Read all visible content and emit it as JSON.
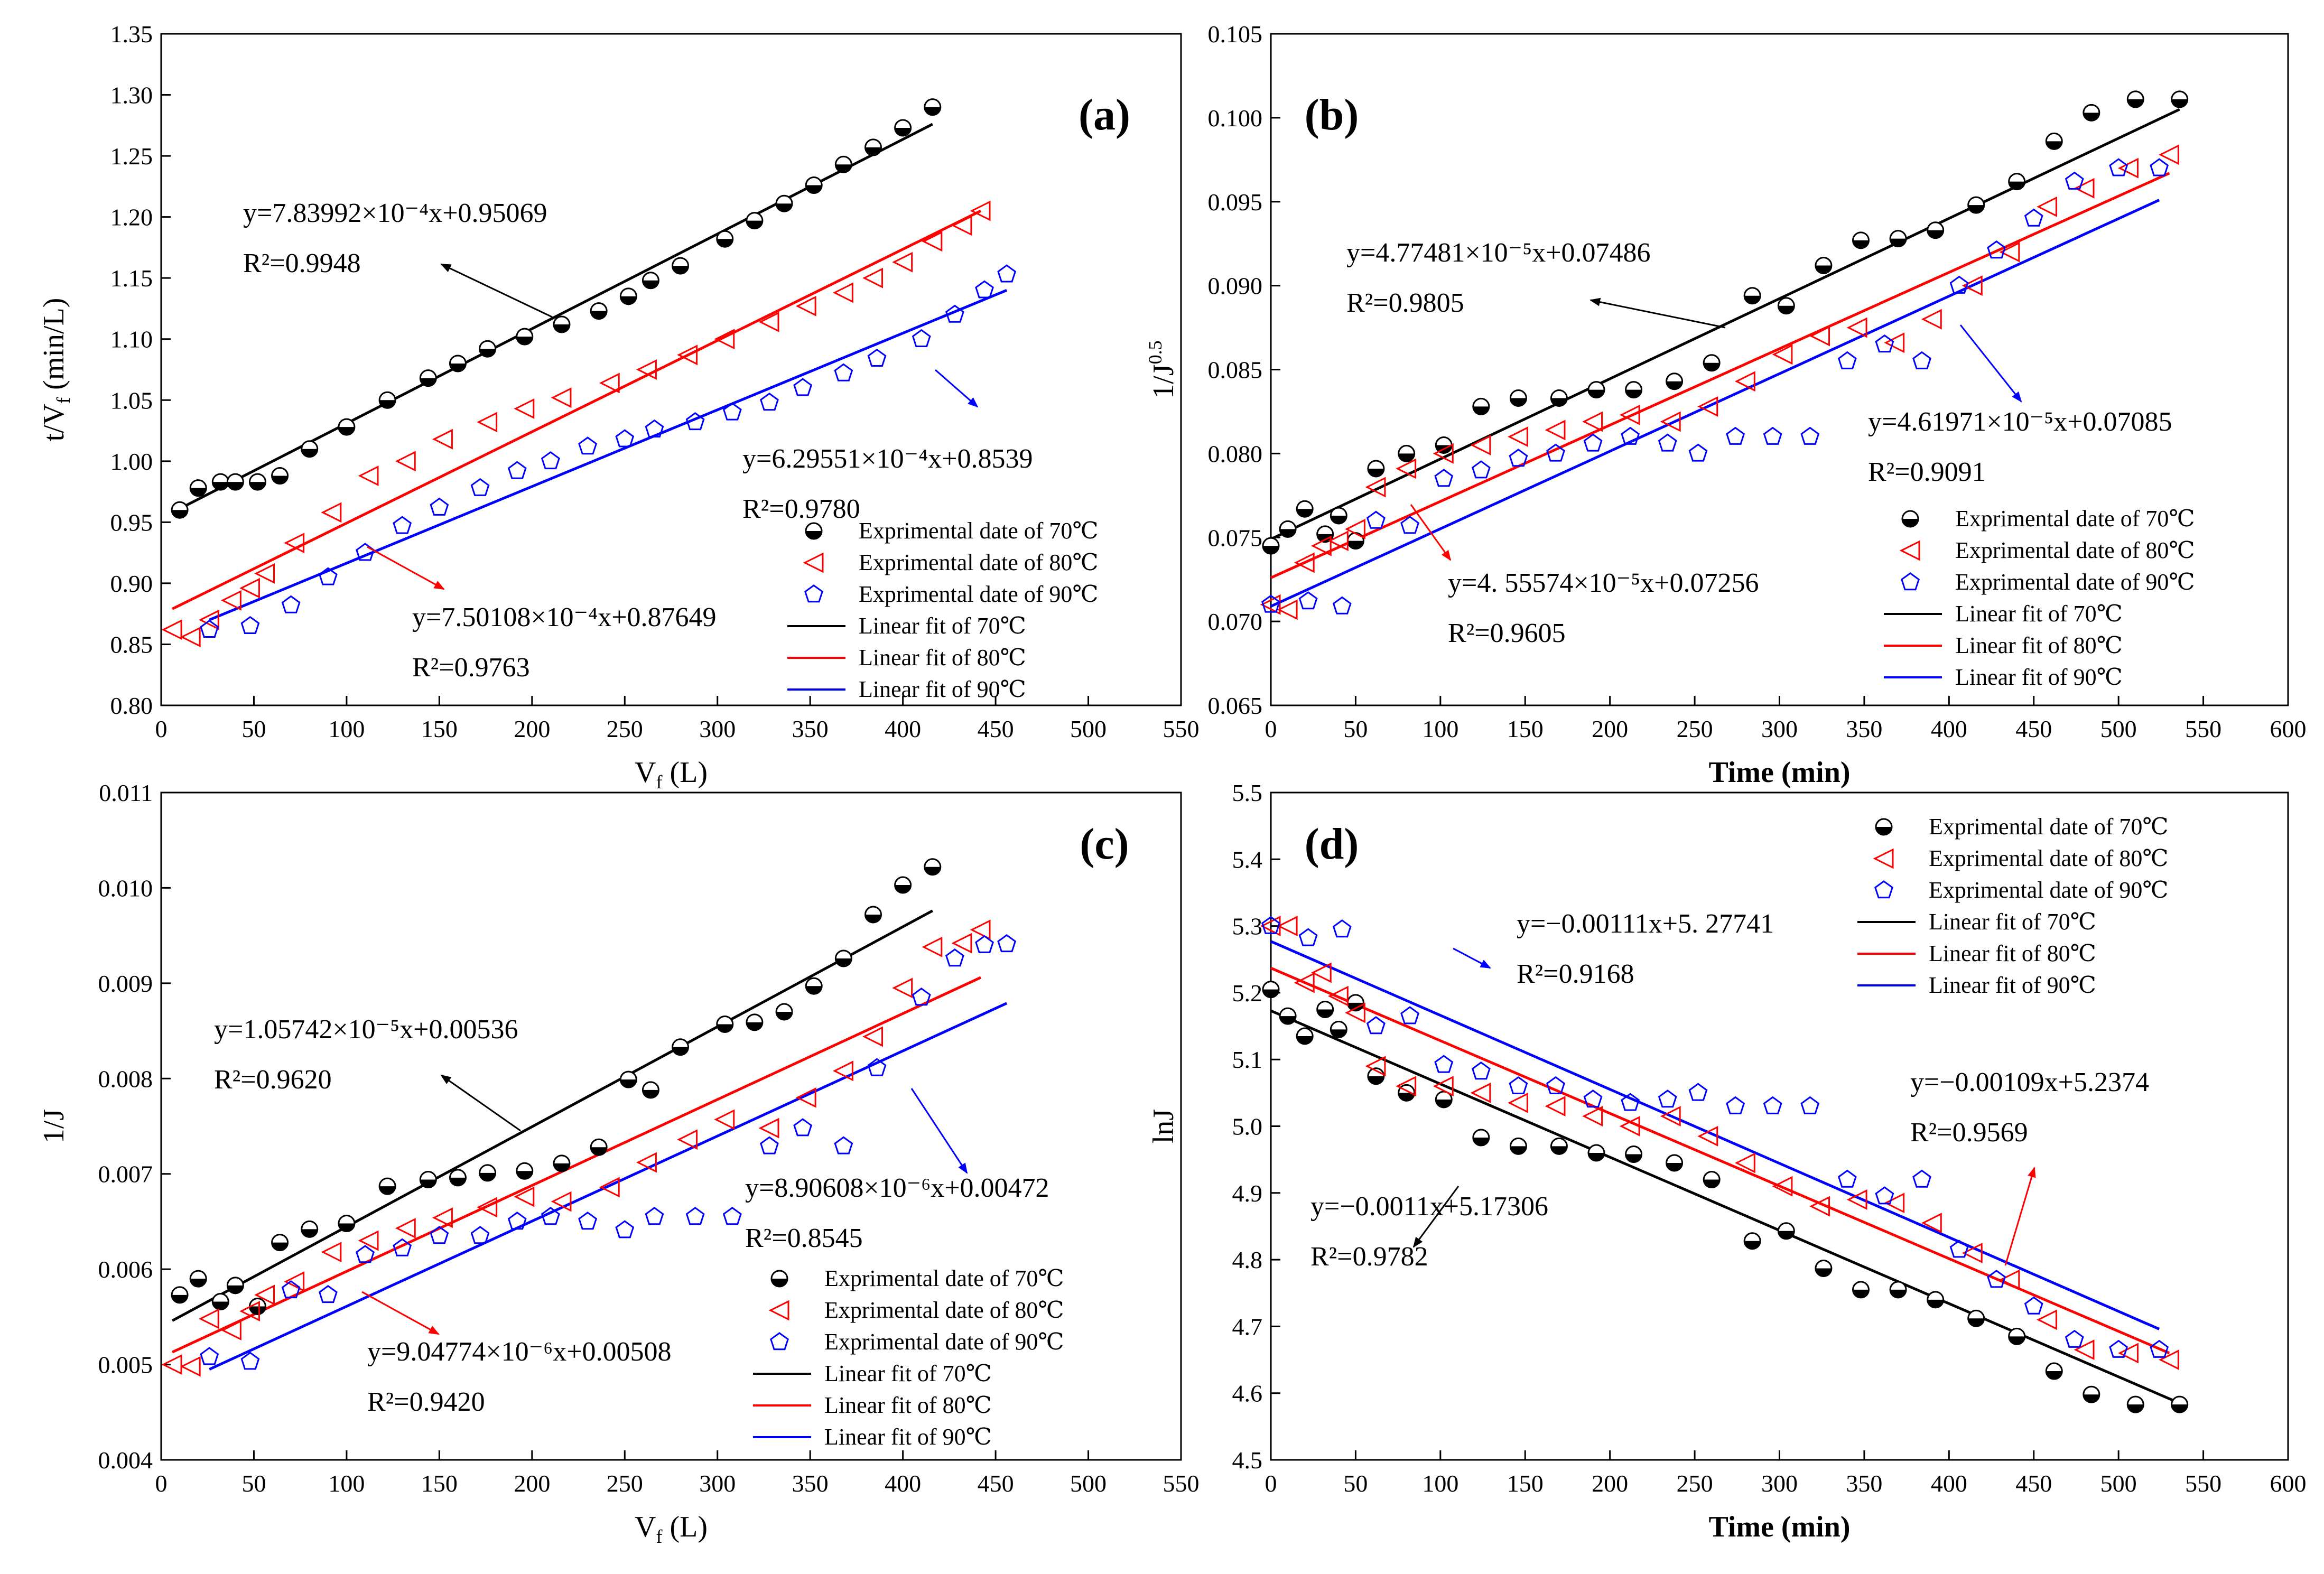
{
  "chart_data": [
    {
      "panel": "(a)",
      "type": "scatter",
      "xlabel": "Vf (L)",
      "ylabel": "t/Vf (min/L)",
      "xlim": [
        0,
        550
      ],
      "ylim": [
        0.8,
        1.35
      ],
      "xticks": [
        "0",
        "50",
        "100",
        "150",
        "200",
        "250",
        "300",
        "350",
        "400",
        "450",
        "500",
        "550"
      ],
      "yticks": [
        "0.80",
        "0.85",
        "0.90",
        "0.95",
        "1.00",
        "1.05",
        "1.10",
        "1.15",
        "1.20",
        "1.25",
        "1.30",
        "1.35"
      ],
      "series": [
        {
          "name": "Exprimental date of 70℃",
          "marker": "half",
          "color": "#000000",
          "x": [
            10,
            20,
            32,
            40,
            52,
            64,
            80,
            100,
            122,
            144,
            160,
            176,
            196,
            216,
            236,
            252,
            264,
            280,
            304,
            320,
            336,
            352,
            368,
            384,
            400,
            416
          ],
          "y": [
            0.96,
            0.978,
            0.983,
            0.983,
            0.983,
            0.988,
            1.01,
            1.028,
            1.05,
            1.068,
            1.08,
            1.092,
            1.102,
            1.112,
            1.123,
            1.135,
            1.148,
            1.16,
            1.182,
            1.197,
            1.211,
            1.226,
            1.243,
            1.257,
            1.273,
            1.29
          ]
        },
        {
          "name": "Exprimental date of 80℃",
          "marker": "triangle",
          "color": "#ff0000",
          "x": [
            6,
            16,
            26,
            38,
            48,
            56,
            72,
            92,
            112,
            132,
            152,
            176,
            196,
            216,
            242,
            262,
            284,
            304,
            328,
            348,
            368,
            384,
            400,
            416,
            432,
            442
          ],
          "y": [
            0.862,
            0.856,
            0.87,
            0.886,
            0.896,
            0.908,
            0.933,
            0.958,
            0.988,
            1.0,
            1.018,
            1.032,
            1.043,
            1.052,
            1.064,
            1.075,
            1.087,
            1.1,
            1.114,
            1.127,
            1.138,
            1.15,
            1.163,
            1.18,
            1.193,
            1.205
          ]
        },
        {
          "name": "Exprimental date of 90℃",
          "marker": "pentagon",
          "color": "#0000ff",
          "x": [
            26,
            48,
            70,
            90,
            110,
            130,
            150,
            172,
            192,
            210,
            230,
            250,
            266,
            288,
            308,
            328,
            346,
            368,
            386,
            410,
            428,
            444,
            456
          ],
          "y": [
            0.862,
            0.865,
            0.882,
            0.905,
            0.925,
            0.947,
            0.962,
            0.978,
            0.992,
            1.0,
            1.012,
            1.018,
            1.026,
            1.032,
            1.04,
            1.048,
            1.06,
            1.072,
            1.084,
            1.1,
            1.12,
            1.14,
            1.153
          ]
        }
      ],
      "fits": [
        {
          "name": "Linear fit of 70℃",
          "color": "#000000",
          "x": [
            6,
            416
          ],
          "y": [
            0.958,
            1.276
          ]
        },
        {
          "name": "Linear fit of 80℃",
          "color": "#ff0000",
          "x": [
            6,
            442
          ],
          "y": [
            0.879,
            1.205
          ]
        },
        {
          "name": "Linear fit of 90℃",
          "color": "#0000ff",
          "x": [
            26,
            456
          ],
          "y": [
            0.87,
            1.14
          ]
        }
      ],
      "equations": [
        {
          "text": "y=7.83992×10⁻⁴x+0.95069",
          "r2": "R²=0.9948"
        },
        {
          "text": "y=6.29551×10⁻⁴x+0.8539",
          "r2": "R²=0.9780"
        },
        {
          "text": "y=7.50108×10⁻⁴x+0.87649",
          "r2": "R²=0.9763"
        }
      ]
    },
    {
      "panel": "(b)",
      "type": "scatter",
      "xlabel": "Time (min)",
      "ylabel": "1/J^0.5",
      "xlim": [
        0,
        600
      ],
      "ylim": [
        0.065,
        0.105
      ],
      "xticks": [
        "0",
        "50",
        "100",
        "150",
        "200",
        "250",
        "300",
        "350",
        "400",
        "450",
        "500",
        "550",
        "600"
      ],
      "yticks": [
        "0.065",
        "0.070",
        "0.075",
        "0.080",
        "0.085",
        "0.090",
        "0.095",
        "0.100",
        "0.105"
      ],
      "series": [
        {
          "name": "Exprimental date of 70℃",
          "marker": "half",
          "color": "#000000",
          "x": [
            0,
            10,
            20,
            32,
            40,
            50,
            62,
            80,
            102,
            124,
            146,
            170,
            192,
            214,
            238,
            260,
            284,
            304,
            326,
            348,
            370,
            392,
            416,
            440,
            462,
            484,
            510,
            536
          ],
          "y": [
            0.0745,
            0.0755,
            0.0767,
            0.0752,
            0.0763,
            0.0748,
            0.0791,
            0.08,
            0.0805,
            0.0828,
            0.0833,
            0.0833,
            0.0838,
            0.0838,
            0.0843,
            0.0854,
            0.0894,
            0.0888,
            0.0912,
            0.0927,
            0.0928,
            0.0933,
            0.0948,
            0.0962,
            0.0986,
            0.1003,
            0.1011,
            0.1011
          ]
        },
        {
          "name": "Exprimental date of 80℃",
          "marker": "triangle",
          "color": "#ff0000",
          "x": [
            0,
            10,
            20,
            30,
            40,
            50,
            62,
            80,
            102,
            124,
            146,
            168,
            190,
            212,
            236,
            258,
            280,
            302,
            324,
            346,
            368,
            390,
            414,
            436,
            458,
            480,
            506,
            530
          ],
          "y": [
            0.071,
            0.0707,
            0.0735,
            0.0745,
            0.0748,
            0.0755,
            0.078,
            0.0791,
            0.08,
            0.0805,
            0.081,
            0.0814,
            0.0819,
            0.0823,
            0.0819,
            0.0828,
            0.0843,
            0.0859,
            0.087,
            0.0875,
            0.0866,
            0.088,
            0.09,
            0.092,
            0.0947,
            0.0958,
            0.097,
            0.0978
          ]
        },
        {
          "name": "Exprimental date of 90℃",
          "marker": "pentagon",
          "color": "#0000ff",
          "x": [
            0,
            22,
            42,
            62,
            82,
            102,
            124,
            146,
            168,
            190,
            212,
            234,
            252,
            274,
            296,
            318,
            340,
            362,
            384,
            406,
            428,
            450,
            474,
            500,
            524
          ],
          "y": [
            0.071,
            0.0712,
            0.0709,
            0.076,
            0.0757,
            0.0785,
            0.079,
            0.0797,
            0.08,
            0.0806,
            0.081,
            0.0806,
            0.08,
            0.081,
            0.081,
            0.081,
            0.0855,
            0.0865,
            0.0855,
            0.09,
            0.0921,
            0.094,
            0.0962,
            0.097,
            0.097
          ]
        }
      ],
      "fits": [
        {
          "name": "Linear fit of 70℃",
          "color": "#000000",
          "x": [
            0,
            536
          ],
          "y": [
            0.0749,
            0.1005
          ]
        },
        {
          "name": "Linear fit of 80℃",
          "color": "#ff0000",
          "x": [
            0,
            530
          ],
          "y": [
            0.0726,
            0.0967
          ]
        },
        {
          "name": "Linear fit of 90℃",
          "color": "#0000ff",
          "x": [
            0,
            524
          ],
          "y": [
            0.0709,
            0.0951
          ]
        }
      ],
      "equations": [
        {
          "text": "y=4.77481×10⁻⁵x+0.07486",
          "r2": "R²=0.9805"
        },
        {
          "text": "y=4.61971×10⁻⁵x+0.07085",
          "r2": "R²=0.9091"
        },
        {
          "text": "y=4. 55574×10⁻⁵x+0.07256",
          "r2": "R²=0.9605"
        }
      ]
    },
    {
      "panel": "(c)",
      "type": "scatter",
      "xlabel": "Vf (L)",
      "ylabel": "1/J",
      "xlim": [
        0,
        550
      ],
      "ylim": [
        0.004,
        0.011
      ],
      "xticks": [
        "0",
        "50",
        "100",
        "150",
        "200",
        "250",
        "300",
        "350",
        "400",
        "450",
        "500",
        "550"
      ],
      "yticks": [
        "0.004",
        "0.005",
        "0.006",
        "0.007",
        "0.008",
        "0.009",
        "0.010",
        "0.011"
      ],
      "series": [
        {
          "name": "Exprimental date of 70℃",
          "marker": "half",
          "color": "#000000",
          "x": [
            10,
            20,
            32,
            40,
            52,
            64,
            80,
            100,
            122,
            144,
            160,
            176,
            196,
            216,
            236,
            252,
            264,
            280,
            304,
            320,
            336,
            352,
            368,
            384,
            400,
            416
          ],
          "y": [
            0.00573,
            0.0059,
            0.00566,
            0.00583,
            0.00561,
            0.00628,
            0.00642,
            0.00648,
            0.00687,
            0.00694,
            0.00696,
            0.00701,
            0.00703,
            0.00711,
            0.00728,
            0.00799,
            0.00788,
            0.00833,
            0.00857,
            0.00859,
            0.0087,
            0.00897,
            0.00926,
            0.00972,
            0.01003,
            0.01022
          ]
        },
        {
          "name": "Exprimental date of 80℃",
          "marker": "triangle",
          "color": "#ff0000",
          "x": [
            6,
            16,
            26,
            38,
            48,
            56,
            72,
            92,
            112,
            132,
            152,
            176,
            196,
            216,
            242,
            262,
            284,
            304,
            328,
            348,
            368,
            384,
            400,
            416,
            432,
            442
          ],
          "y": [
            0.005,
            0.00498,
            0.00548,
            0.00536,
            0.00556,
            0.00573,
            0.00587,
            0.00618,
            0.0063,
            0.00643,
            0.00654,
            0.00665,
            0.00676,
            0.00671,
            0.00686,
            0.00712,
            0.00736,
            0.00757,
            0.00748,
            0.0078,
            0.00808,
            0.00844,
            0.00895,
            0.00938,
            0.00942,
            0.00956
          ]
        },
        {
          "name": "Exprimental date of 90℃",
          "marker": "pentagon",
          "color": "#0000ff",
          "x": [
            26,
            48,
            70,
            90,
            110,
            130,
            150,
            172,
            192,
            210,
            230,
            250,
            266,
            288,
            308,
            328,
            346,
            368,
            386,
            410,
            428,
            444,
            456
          ],
          "y": [
            0.00508,
            0.00503,
            0.00578,
            0.00573,
            0.00615,
            0.00622,
            0.00635,
            0.00635,
            0.0065,
            0.00655,
            0.0065,
            0.00641,
            0.00655,
            0.00655,
            0.00655,
            0.00729,
            0.00748,
            0.00729,
            0.00811,
            0.00885,
            0.00926,
            0.0094,
            0.00941
          ]
        }
      ],
      "fits": [
        {
          "name": "Linear fit of 70℃",
          "color": "#000000",
          "x": [
            6,
            416
          ],
          "y": [
            0.00546,
            0.00976
          ]
        },
        {
          "name": "Linear fit of 80℃",
          "color": "#ff0000",
          "x": [
            6,
            442
          ],
          "y": [
            0.00513,
            0.00906
          ]
        },
        {
          "name": "Linear fit of 90℃",
          "color": "#0000ff",
          "x": [
            26,
            456
          ],
          "y": [
            0.00495,
            0.00879
          ]
        }
      ],
      "equations": [
        {
          "text": "y=1.05742×10⁻⁵x+0.00536",
          "r2": "R²=0.9620"
        },
        {
          "text": "y=8.90608×10⁻⁶x+0.00472",
          "r2": "R²=0.8545"
        },
        {
          "text": "y=9.04774×10⁻⁶x+0.00508",
          "r2": "R²=0.9420"
        }
      ]
    },
    {
      "panel": "(d)",
      "type": "scatter",
      "xlabel": "Time (min)",
      "ylabel": "lnJ",
      "xlim": [
        0,
        600
      ],
      "ylim": [
        4.5,
        5.5
      ],
      "xticks": [
        "0",
        "50",
        "100",
        "150",
        "200",
        "250",
        "300",
        "350",
        "400",
        "450",
        "500",
        "550",
        "600"
      ],
      "yticks": [
        "4.5",
        "4.6",
        "4.7",
        "4.8",
        "4.9",
        "5.0",
        "5.1",
        "5.2",
        "5.3",
        "5.4",
        "5.5"
      ],
      "series": [
        {
          "name": "Exprimental date of 70℃",
          "marker": "half",
          "color": "#000000",
          "x": [
            0,
            10,
            20,
            32,
            40,
            50,
            62,
            80,
            102,
            124,
            146,
            170,
            192,
            214,
            238,
            260,
            284,
            304,
            326,
            348,
            370,
            392,
            416,
            440,
            462,
            484,
            510,
            536
          ],
          "y": [
            5.205,
            5.165,
            5.135,
            5.175,
            5.145,
            5.185,
            5.075,
            5.05,
            5.04,
            4.983,
            4.97,
            4.97,
            4.96,
            4.958,
            4.945,
            4.92,
            4.828,
            4.843,
            4.787,
            4.755,
            4.755,
            4.74,
            4.712,
            4.685,
            4.633,
            4.598,
            4.583,
            4.583
          ]
        },
        {
          "name": "Exprimental date of 80℃",
          "marker": "triangle",
          "color": "#ff0000",
          "x": [
            0,
            10,
            20,
            30,
            40,
            50,
            62,
            80,
            102,
            124,
            146,
            168,
            190,
            212,
            236,
            258,
            280,
            302,
            324,
            346,
            368,
            390,
            414,
            436,
            458,
            480,
            506,
            530
          ],
          "y": [
            5.3,
            5.3,
            5.215,
            5.23,
            5.195,
            5.17,
            5.09,
            5.06,
            5.06,
            5.05,
            5.035,
            5.03,
            5.015,
            5.0,
            5.015,
            4.985,
            4.945,
            4.91,
            4.88,
            4.89,
            4.885,
            4.855,
            4.81,
            4.77,
            4.71,
            4.665,
            4.66,
            4.65
          ]
        },
        {
          "name": "Exprimental date of 90℃",
          "marker": "pentagon",
          "color": "#0000ff",
          "x": [
            0,
            22,
            42,
            62,
            82,
            102,
            124,
            146,
            168,
            190,
            212,
            234,
            252,
            274,
            296,
            318,
            340,
            362,
            384,
            406,
            428,
            450,
            474,
            500,
            524
          ],
          "y": [
            5.3,
            5.282,
            5.295,
            5.15,
            5.165,
            5.092,
            5.082,
            5.06,
            5.06,
            5.04,
            5.035,
            5.04,
            5.05,
            5.03,
            5.03,
            5.03,
            4.92,
            4.895,
            4.92,
            4.815,
            4.77,
            4.73,
            4.68,
            4.665,
            4.665
          ]
        }
      ],
      "fits": [
        {
          "name": "Linear fit of 70℃",
          "color": "#000000",
          "x": [
            0,
            536
          ],
          "y": [
            5.173,
            4.585
          ]
        },
        {
          "name": "Linear fit of 80℃",
          "color": "#ff0000",
          "x": [
            0,
            530
          ],
          "y": [
            5.237,
            4.66
          ]
        },
        {
          "name": "Linear fit of 90℃",
          "color": "#0000ff",
          "x": [
            0,
            524
          ],
          "y": [
            5.277,
            4.696
          ]
        }
      ],
      "equations": [
        {
          "text": "y=−0.00111x+5. 27741",
          "r2": "R²=0.9168"
        },
        {
          "text": "y=−0.00109x+5.2374",
          "r2": "R²=0.9569"
        },
        {
          "text": "y=−0.0011x+5.17306",
          "r2": "R²=0.9782"
        }
      ]
    }
  ]
}
